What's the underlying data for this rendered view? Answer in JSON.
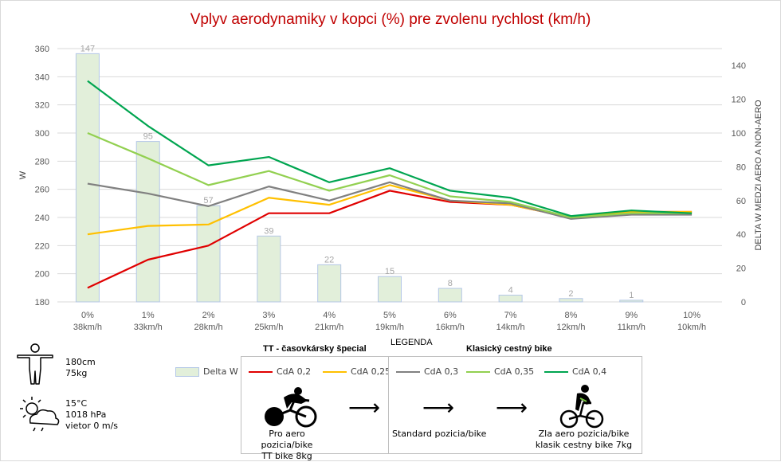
{
  "chart_data": {
    "type": "bar+line",
    "title": "Vplyv aerodynamiky v kopci (%) pre zvolenu rychlost (km/h)",
    "ylabel": "W",
    "y2label": "DELTA W MEDZI AERO A NON-AERO",
    "ylim": [
      180,
      360
    ],
    "y2lim": [
      0,
      150
    ],
    "yticks": [
      "180",
      "200",
      "220",
      "240",
      "260",
      "280",
      "300",
      "320",
      "340",
      "360"
    ],
    "y2ticks": [
      "0",
      "20",
      "40",
      "60",
      "80",
      "100",
      "120",
      "140"
    ],
    "categories": [
      "0%",
      "1%",
      "2%",
      "3%",
      "4%",
      "5%",
      "6%",
      "7%",
      "8%",
      "9%",
      "10%"
    ],
    "categories_sub": [
      "38km/h",
      "33km/h",
      "28km/h",
      "25km/h",
      "21km/h",
      "19km/h",
      "16km/h",
      "14km/h",
      "12km/h",
      "11km/h",
      "10km/h"
    ],
    "bars": {
      "name": "Delta W",
      "values": [
        147,
        95,
        57,
        39,
        22,
        15,
        8,
        4,
        2,
        1,
        0
      ],
      "labels": [
        "147",
        "95",
        "57",
        "39",
        "22",
        "15",
        "8",
        "4",
        "2",
        "1",
        ""
      ],
      "fill": "#e2efda",
      "stroke": "#b4c7e7"
    },
    "series": [
      {
        "name": "CdA 0,2",
        "color": "#e00000",
        "values": [
          190,
          210,
          220,
          243,
          243,
          259,
          251,
          249,
          240,
          244,
          244
        ]
      },
      {
        "name": "CdA 0,25",
        "color": "#ffc000",
        "values": [
          228,
          234,
          235,
          254,
          249,
          263,
          252,
          249,
          240,
          244,
          244
        ]
      },
      {
        "name": "CdA 0,3",
        "color": "#808080",
        "values": [
          264,
          257,
          248,
          262,
          252,
          265,
          252,
          250,
          239,
          242,
          242
        ]
      },
      {
        "name": "CdA 0,35",
        "color": "#92d050",
        "values": [
          300,
          282,
          263,
          273,
          259,
          270,
          255,
          251,
          240,
          243,
          243
        ]
      },
      {
        "name": "CdA 0,4",
        "color": "#00a550",
        "values": [
          337,
          305,
          277,
          283,
          265,
          275,
          259,
          254,
          241,
          245,
          243
        ]
      }
    ]
  },
  "legend": {
    "title": "LEGENDA",
    "delta_label": "Delta W",
    "tt_header": "TT - časovkársky špecial",
    "klasik_header": "Klasický cestný bike",
    "cap_aero_1": "Pro aero pozicia/bike",
    "cap_aero_2": "TT bike 8kg",
    "cap_standard": "Standard pozicia/bike",
    "cap_klasik_1": "Zla aero pozicia/bike",
    "cap_klasik_2": "klasik cestny bike 7kg",
    "arrow": "⟶"
  },
  "rider": {
    "height": "180cm",
    "weight": "75kg"
  },
  "weather": {
    "temp": "15°C",
    "pressure": "1018 hPa",
    "wind": "vietor 0 m/s"
  }
}
